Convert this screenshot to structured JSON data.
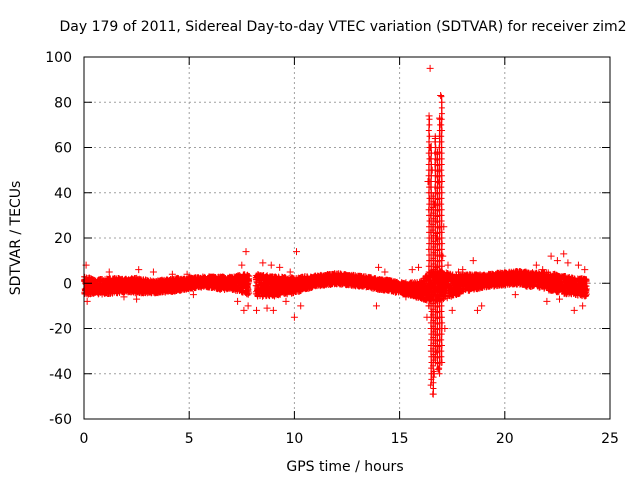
{
  "chart_data": {
    "type": "scatter",
    "title": "Day 179 of 2011, Sidereal Day-to-day VTEC variation (SDTVAR) for receiver zim2",
    "xlabel": "GPS time / hours",
    "ylabel": "SDTVAR / TECUs",
    "xlim": [
      0,
      25
    ],
    "ylim": [
      -60,
      100
    ],
    "xticks": [
      0,
      5,
      10,
      15,
      20,
      25
    ],
    "yticks": [
      -60,
      -40,
      -20,
      0,
      20,
      40,
      60,
      80,
      100
    ],
    "grid": true,
    "marker": "+",
    "color": "#ff0000",
    "series": [
      {
        "name": "SDTVAR",
        "band": {
          "x": [
            0,
            0.5,
            1,
            1.5,
            2,
            2.5,
            3,
            3.5,
            4,
            4.5,
            5,
            5.5,
            6,
            6.5,
            7,
            7.5,
            8,
            8.5,
            9,
            9.5,
            10,
            10.5,
            11,
            11.5,
            12,
            12.5,
            13,
            13.5,
            14,
            14.5,
            15,
            15.5,
            16,
            16.3,
            16.6,
            16.9,
            17.2,
            17.5,
            18,
            18.5,
            19,
            19.5,
            20,
            20.5,
            21,
            21.5,
            22,
            22.5,
            23,
            23.5,
            23.9
          ],
          "center": [
            -1,
            -1.5,
            -1.5,
            -1,
            -1,
            -1,
            -1.5,
            -1.5,
            -1,
            -0.5,
            0,
            0.5,
            0.5,
            0,
            0,
            0,
            -1,
            -1,
            -1.5,
            -1,
            -1,
            0,
            1,
            1.5,
            2,
            1.5,
            1,
            0.5,
            -0.5,
            -1,
            -2,
            -2.5,
            -3,
            -2,
            -1,
            -1,
            -1,
            -1,
            0,
            0.5,
            1,
            1.5,
            2,
            2.5,
            2,
            1.5,
            1,
            0,
            -1,
            -1.5,
            -2
          ],
          "spread": [
            4,
            3.5,
            3.5,
            3.5,
            3,
            3.5,
            3,
            3,
            3,
            3,
            2.5,
            2.5,
            2.5,
            3,
            3,
            4,
            5,
            5,
            4.5,
            4,
            3.5,
            3,
            2.5,
            2.5,
            2.5,
            2.5,
            2.5,
            2.5,
            2.5,
            2.5,
            2.5,
            3,
            4,
            6,
            7,
            7,
            6,
            5,
            4,
            3.5,
            3,
            3,
            3,
            3,
            3.5,
            3.5,
            4,
            4,
            4,
            4,
            4
          ]
        },
        "outliers": [
          [
            0.1,
            8
          ],
          [
            0.15,
            -8
          ],
          [
            1.2,
            5
          ],
          [
            1.9,
            -6
          ],
          [
            2.5,
            -7
          ],
          [
            2.6,
            6
          ],
          [
            3.3,
            5
          ],
          [
            4.2,
            4
          ],
          [
            4.9,
            4
          ],
          [
            5.2,
            -5
          ],
          [
            7.3,
            -8
          ],
          [
            7.5,
            8
          ],
          [
            7.6,
            -12
          ],
          [
            7.7,
            14
          ],
          [
            7.8,
            -10
          ],
          [
            8.2,
            -12
          ],
          [
            8.5,
            9
          ],
          [
            8.7,
            -11
          ],
          [
            8.9,
            8
          ],
          [
            9.0,
            -12
          ],
          [
            9.3,
            7
          ],
          [
            9.6,
            -8
          ],
          [
            9.8,
            5
          ],
          [
            10.0,
            -15
          ],
          [
            10.1,
            14
          ],
          [
            10.3,
            -10
          ],
          [
            10.5,
            3
          ],
          [
            10.8,
            2
          ],
          [
            13.9,
            -10
          ],
          [
            14.0,
            7
          ],
          [
            14.3,
            5
          ],
          [
            14.8,
            -4
          ],
          [
            15.3,
            -6
          ],
          [
            15.6,
            6
          ],
          [
            15.9,
            7
          ],
          [
            16.3,
            -15
          ],
          [
            16.35,
            45
          ],
          [
            16.4,
            -10
          ],
          [
            16.4,
            74
          ],
          [
            16.45,
            95
          ],
          [
            16.45,
            60
          ],
          [
            16.5,
            -20
          ],
          [
            16.5,
            40
          ],
          [
            16.55,
            50
          ],
          [
            16.6,
            -49
          ],
          [
            16.6,
            -30
          ],
          [
            16.65,
            35
          ],
          [
            16.65,
            -40
          ],
          [
            16.7,
            64
          ],
          [
            16.75,
            20
          ],
          [
            16.8,
            -28
          ],
          [
            16.8,
            58
          ],
          [
            16.85,
            -38
          ],
          [
            16.9,
            73
          ],
          [
            16.95,
            83
          ],
          [
            17.0,
            -35
          ],
          [
            17.05,
            12
          ],
          [
            17.1,
            25
          ],
          [
            17.15,
            -20
          ],
          [
            17.3,
            8
          ],
          [
            17.5,
            -12
          ],
          [
            17.8,
            5
          ],
          [
            18.0,
            6
          ],
          [
            18.5,
            10
          ],
          [
            18.7,
            -12
          ],
          [
            18.9,
            -10
          ],
          [
            19.4,
            3
          ],
          [
            20.5,
            -5
          ],
          [
            21.0,
            5
          ],
          [
            21.5,
            8
          ],
          [
            21.8,
            6
          ],
          [
            22.0,
            -8
          ],
          [
            22.2,
            12
          ],
          [
            22.5,
            10
          ],
          [
            22.6,
            -7
          ],
          [
            22.8,
            13
          ],
          [
            23.0,
            9
          ],
          [
            23.3,
            -12
          ],
          [
            23.5,
            8
          ],
          [
            23.7,
            -10
          ],
          [
            23.8,
            6
          ]
        ],
        "spike": {
          "segments": [
            [
              16.4,
              -10,
              16.4,
              74
            ],
            [
              16.5,
              -45,
              16.5,
              62
            ],
            [
              16.6,
              -49,
              16.6,
              40
            ],
            [
              16.7,
              -35,
              16.7,
              65
            ],
            [
              16.8,
              -38,
              16.8,
              58
            ],
            [
              16.9,
              -40,
              16.9,
              73
            ],
            [
              17.0,
              -35,
              17.0,
              83
            ]
          ]
        }
      }
    ]
  }
}
